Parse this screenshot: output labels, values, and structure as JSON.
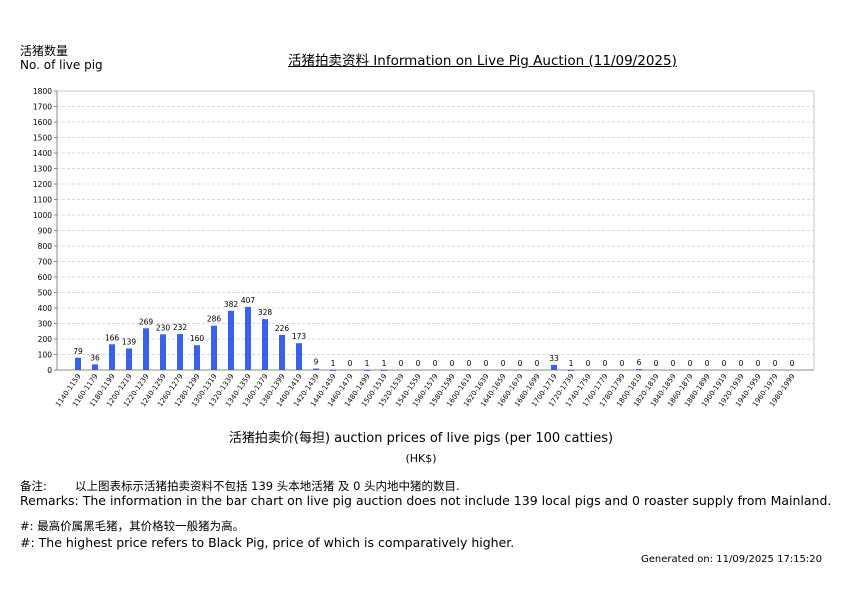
{
  "header": {
    "y_axis_title_cn": "活猪数量",
    "y_axis_title_en": "No. of live pig",
    "title": "活猪拍卖资料 Information on Live Pig Auction (11/09/2025)"
  },
  "axis": {
    "x_title": "活猪拍卖价(每担) auction prices of live pigs (per 100 catties)",
    "x_unit": "(HK$)"
  },
  "remarks": {
    "label_cn": "备注:",
    "text_cn": "以上图表标示活猪拍卖资料不包括 139 头本地活猪 及 0 头内地中猪的数目.",
    "text_en": "Remarks: The information in the bar chart on live pig auction does not include 139 local pigs and 0 roaster supply from Mainland.",
    "note_cn": "#: 最高价属黑毛猪，其价格较一般猪为高。",
    "note_en": "#: The highest price refers to Black Pig, price of which is comparatively higher."
  },
  "footer": {
    "generated": "Generated on: 11/09/2025 17:15:20"
  },
  "colors": {
    "bar": "#3a62e8",
    "grid": "#d8d8d8",
    "axis": "#888888"
  },
  "chart_data": {
    "type": "bar",
    "title": "活猪拍卖资料 Information on Live Pig Auction (11/09/2025)",
    "xlabel": "活猪拍卖价(每担) auction prices of live pigs (per 100 catties) (HK$)",
    "ylabel": "活猪数量 No. of live pig",
    "ylim": [
      0,
      1800
    ],
    "yticks": [
      0,
      100,
      200,
      300,
      400,
      500,
      600,
      700,
      800,
      900,
      1000,
      1100,
      1200,
      1300,
      1400,
      1500,
      1600,
      1700,
      1800
    ],
    "grid": true,
    "legend": null,
    "categories": [
      "1140-1159",
      "1160-1179",
      "1180-1199",
      "1200-1219",
      "1220-1239",
      "1240-1259",
      "1260-1279",
      "1280-1299",
      "1300-1319",
      "1320-1339",
      "1340-1359",
      "1360-1379",
      "1380-1399",
      "1400-1419",
      "1420-1439",
      "1440-1459",
      "1460-1479",
      "1480-1499",
      "1500-1519",
      "1520-1539",
      "1540-1559",
      "1560-1579",
      "1580-1599",
      "1600-1619",
      "1620-1639",
      "1640-1659",
      "1660-1679",
      "1680-1699",
      "1700-1719",
      "1720-1739",
      "1740-1759",
      "1760-1779",
      "1780-1799",
      "1800-1819",
      "1820-1839",
      "1840-1859",
      "1860-1879",
      "1880-1899",
      "1900-1919",
      "1920-1939",
      "1940-1959",
      "1960-1979",
      "1980-1999"
    ],
    "values": [
      79,
      36,
      166,
      139,
      269,
      230,
      232,
      160,
      286,
      382,
      407,
      328,
      226,
      173,
      9,
      1,
      0,
      1,
      1,
      0,
      0,
      0,
      0,
      0,
      0,
      0,
      0,
      0,
      33,
      1,
      0,
      0,
      0,
      6,
      0,
      0,
      0,
      0,
      0,
      0,
      0,
      0,
      0
    ]
  }
}
